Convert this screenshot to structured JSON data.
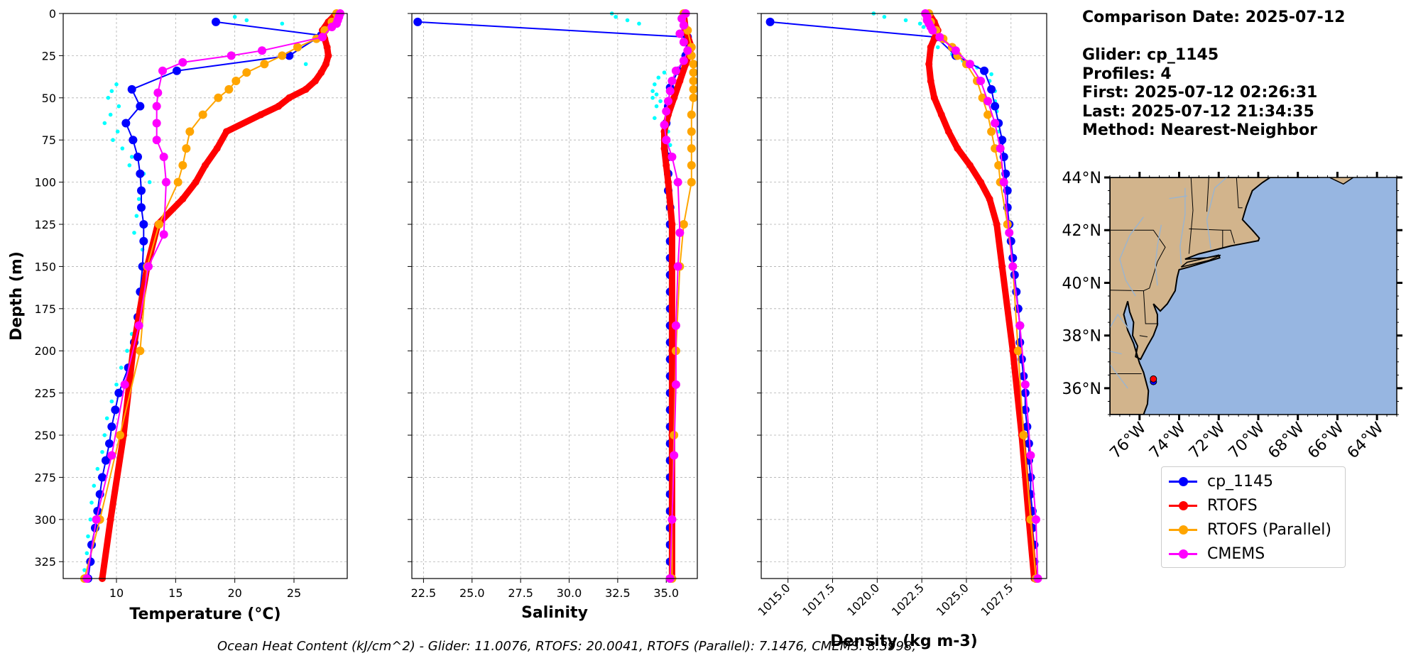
{
  "info": {
    "comparison_date": "Comparison Date: 2025-07-12",
    "glider": "Glider: cp_1145",
    "profiles": "Profiles: 4",
    "first": "First: 2025-07-12 02:26:31",
    "last": "Last: 2025-07-12 21:34:35",
    "method": "Method: Nearest-Neighbor"
  },
  "footer": "Ocean Heat Content (kJ/cm^2) - Glider: 11.0076,  RTOFS: 20.0041,  RTOFS (Parallel): 7.1476,  CMEMS: 8.3998,",
  "legend": [
    {
      "label": "cp_1145",
      "color": "#0000ff"
    },
    {
      "label": "RTOFS",
      "color": "#ff0000"
    },
    {
      "label": "RTOFS (Parallel)",
      "color": "#ffa500"
    },
    {
      "label": "CMEMS",
      "color": "#ff00ff"
    }
  ],
  "chart_data": [
    {
      "type": "line",
      "title": "",
      "xlabel": "Temperature (°C)",
      "ylabel": "Depth (m)",
      "xlim": [
        5.5,
        29.5
      ],
      "ylim": [
        335,
        0
      ],
      "xticks": [
        10,
        15,
        20,
        25
      ],
      "yticks": [
        0,
        25,
        50,
        75,
        100,
        125,
        150,
        175,
        200,
        225,
        250,
        275,
        300,
        325
      ],
      "grid": true,
      "series": [
        {
          "name": "glider-data",
          "style": "cyan-dots",
          "color": "#00ffff",
          "depth": [
            2,
            4,
            6,
            30,
            42,
            46,
            50,
            55,
            60,
            65,
            70,
            75,
            80,
            85,
            90,
            95,
            100,
            110,
            120,
            130,
            140,
            150,
            160,
            170,
            180,
            190,
            200,
            210,
            220,
            230,
            240,
            250,
            260,
            270,
            280,
            290,
            300,
            310,
            320,
            330
          ],
          "values": [
            20,
            21,
            24,
            26,
            10,
            9.6,
            9.3,
            10.2,
            9.5,
            9.0,
            10.1,
            9.7,
            10.5,
            11.3,
            11.1,
            12.3,
            12.8,
            11.9,
            11.7,
            11.5,
            12.2,
            12.0,
            12.2,
            12.1,
            11.8,
            11.3,
            10.9,
            10.4,
            10.0,
            9.6,
            9.2,
            9.0,
            8.8,
            8.4,
            8.1,
            7.9,
            7.8,
            7.6,
            7.5,
            7.3
          ]
        },
        {
          "name": "cp_1145",
          "color": "#0000ff",
          "depth": [
            5,
            13,
            25,
            34,
            45,
            55,
            65,
            75,
            85,
            95,
            105,
            115,
            125,
            135,
            150,
            165,
            180,
            195,
            210,
            225,
            235,
            245,
            255,
            265,
            275,
            285,
            295,
            305,
            315,
            325,
            335
          ],
          "values": [
            18.4,
            27.3,
            24.6,
            15.1,
            11.3,
            12.0,
            10.8,
            11.4,
            11.8,
            12.0,
            12.1,
            12.1,
            12.3,
            12.3,
            12.2,
            12.0,
            11.8,
            11.5,
            11.0,
            10.2,
            9.9,
            9.6,
            9.4,
            9.1,
            8.8,
            8.6,
            8.4,
            8.2,
            7.9,
            7.8,
            7.6
          ]
        },
        {
          "name": "RTOFS",
          "color": "#ff0000",
          "thick": true,
          "depth": [
            0,
            5,
            10,
            15,
            20,
            25,
            30,
            35,
            40,
            45,
            50,
            55,
            60,
            70,
            80,
            90,
            100,
            110,
            125,
            150,
            200,
            250,
            300,
            335
          ],
          "values": [
            28.6,
            27.9,
            27.4,
            27.6,
            27.8,
            27.9,
            27.7,
            27.3,
            26.8,
            26.0,
            24.6,
            23.7,
            22.2,
            19.3,
            18.5,
            17.5,
            16.7,
            15.6,
            13.5,
            12.6,
            11.4,
            10.6,
            9.5,
            8.8
          ]
        },
        {
          "name": "RTOFS (Parallel)",
          "color": "#ffa500",
          "depth": [
            0,
            5,
            10,
            15,
            20,
            25,
            30,
            35,
            40,
            45,
            50,
            60,
            70,
            80,
            90,
            100,
            125,
            150,
            200,
            250,
            300,
            335
          ],
          "values": [
            28.6,
            28.2,
            27.6,
            26.9,
            25.3,
            24.0,
            22.5,
            21.0,
            20.1,
            19.5,
            18.6,
            17.3,
            16.2,
            15.9,
            15.6,
            15.2,
            13.6,
            12.6,
            12.0,
            10.3,
            8.6,
            7.3
          ]
        },
        {
          "name": "CMEMS",
          "color": "#ff00ff",
          "depth": [
            0,
            2,
            4,
            6,
            8,
            14,
            22,
            25,
            29,
            34,
            47,
            55,
            65,
            75,
            85,
            100,
            131,
            150,
            185,
            220,
            262,
            300,
            335
          ],
          "values": [
            28.9,
            28.8,
            28.7,
            28.6,
            28.2,
            27.4,
            22.3,
            19.7,
            15.6,
            13.9,
            13.5,
            13.4,
            13.4,
            13.4,
            14.0,
            14.2,
            14.0,
            12.7,
            11.9,
            10.7,
            9.6,
            8.3,
            7.5
          ]
        }
      ]
    },
    {
      "type": "line",
      "title": "",
      "xlabel": "Salinity",
      "ylabel": "",
      "xlim": [
        21.9,
        36.6
      ],
      "ylim": [
        335,
        0
      ],
      "xticks": [
        22.5,
        25.0,
        27.5,
        30.0,
        32.5,
        35.0
      ],
      "xtick_labels": [
        "22.5",
        "25.0",
        "27.5",
        "30.0",
        "32.5",
        "35.0"
      ],
      "grid": true,
      "series": [
        {
          "name": "glider-data",
          "style": "cyan-dots",
          "color": "#00ffff",
          "depth": [
            0,
            2,
            4,
            6,
            35,
            38,
            42,
            46,
            48,
            50,
            52,
            55,
            58,
            62,
            66,
            70,
            74,
            78
          ],
          "values": [
            32.2,
            32.4,
            33.0,
            33.6,
            34.9,
            34.6,
            34.4,
            34.3,
            34.5,
            34.3,
            34.7,
            34.5,
            34.9,
            34.4,
            34.8,
            35.1,
            34.9,
            35.2
          ]
        },
        {
          "name": "cp_1145",
          "color": "#0000ff",
          "depth": [
            5,
            14,
            25,
            34,
            44,
            55,
            65,
            75,
            85,
            95,
            105,
            115,
            125,
            135,
            145,
            155,
            165,
            175,
            185,
            195,
            205,
            215,
            225,
            235,
            245,
            255,
            265,
            275,
            285,
            295,
            305,
            315,
            325,
            335
          ],
          "values": [
            22.2,
            36.1,
            36.0,
            35.6,
            35.2,
            35.1,
            35.0,
            35.0,
            35.1,
            35.1,
            35.1,
            35.2,
            35.2,
            35.2,
            35.2,
            35.2,
            35.2,
            35.2,
            35.2,
            35.2,
            35.2,
            35.2,
            35.2,
            35.2,
            35.2,
            35.2,
            35.2,
            35.2,
            35.2,
            35.2,
            35.2,
            35.2,
            35.2,
            35.2
          ]
        },
        {
          "name": "RTOFS",
          "color": "#ff0000",
          "thick": true,
          "depth": [
            0,
            10,
            20,
            30,
            40,
            50,
            60,
            70,
            80,
            90,
            100,
            125,
            150,
            200,
            250,
            300,
            335
          ],
          "values": [
            35.9,
            36.0,
            36.3,
            36.0,
            35.7,
            35.4,
            35.1,
            34.9,
            34.9,
            35.0,
            35.1,
            35.3,
            35.3,
            35.3,
            35.3,
            35.3,
            35.3
          ]
        },
        {
          "name": "RTOFS (Parallel)",
          "color": "#ffa500",
          "depth": [
            0,
            10,
            20,
            25,
            30,
            35,
            40,
            45,
            50,
            60,
            70,
            80,
            90,
            100,
            125,
            150,
            200,
            250,
            300,
            335
          ],
          "values": [
            35.9,
            36.1,
            36.3,
            36.3,
            36.4,
            36.4,
            36.4,
            36.4,
            36.4,
            36.3,
            36.3,
            36.3,
            36.3,
            36.3,
            35.9,
            35.7,
            35.5,
            35.4,
            35.3,
            35.3
          ]
        },
        {
          "name": "CMEMS",
          "color": "#ff00ff",
          "depth": [
            0,
            3,
            7,
            12,
            17,
            22,
            28,
            34,
            40,
            46,
            52,
            58,
            66,
            75,
            85,
            100,
            130,
            150,
            185,
            220,
            262,
            300,
            335
          ],
          "values": [
            36.0,
            35.8,
            35.9,
            35.7,
            35.9,
            36.1,
            35.9,
            35.5,
            35.3,
            35.2,
            35.1,
            35.0,
            34.9,
            35.0,
            35.3,
            35.6,
            35.7,
            35.6,
            35.5,
            35.5,
            35.4,
            35.3,
            35.2
          ]
        }
      ]
    },
    {
      "type": "line",
      "title": "",
      "xlabel": "Density (kg m-3)",
      "ylabel": "",
      "xlim": [
        1013.5,
        1029.5
      ],
      "ylim": [
        335,
        0
      ],
      "xticks": [
        1015.0,
        1017.5,
        1020.0,
        1022.5,
        1025.0,
        1027.5
      ],
      "xtick_labels": [
        "1015.0",
        "1017.5",
        "1020.0",
        "1022.5",
        "1025.0",
        "1027.5"
      ],
      "grid": true,
      "series": [
        {
          "name": "glider-data",
          "style": "cyan-dots",
          "color": "#00ffff",
          "depth": [
            0,
            2,
            4,
            6,
            8,
            20,
            24,
            28,
            32,
            36,
            40,
            46,
            52,
            58,
            64,
            70
          ],
          "values": [
            1019.8,
            1020.4,
            1021.6,
            1022.4,
            1022.6,
            1023.4,
            1024.2,
            1024.8,
            1025.6,
            1026.4,
            1026.3,
            1026.6,
            1026.6,
            1026.7,
            1026.7,
            1026.8
          ]
        },
        {
          "name": "cp_1145",
          "color": "#0000ff",
          "depth": [
            5,
            14,
            25,
            34,
            45,
            55,
            65,
            75,
            85,
            95,
            105,
            115,
            125,
            135,
            145,
            155,
            165,
            175,
            185,
            195,
            205,
            215,
            225,
            235,
            245,
            255,
            265,
            275,
            285,
            295,
            305,
            315,
            325,
            335
          ],
          "values": [
            1014.0,
            1023.3,
            1024.4,
            1026.0,
            1026.4,
            1026.6,
            1026.8,
            1027.0,
            1027.1,
            1027.2,
            1027.3,
            1027.3,
            1027.4,
            1027.5,
            1027.6,
            1027.7,
            1027.8,
            1027.9,
            1028.0,
            1028.0,
            1028.1,
            1028.2,
            1028.3,
            1028.3,
            1028.4,
            1028.5,
            1028.5,
            1028.6,
            1028.6,
            1028.7,
            1028.7,
            1028.8,
            1028.8,
            1028.9
          ]
        },
        {
          "name": "RTOFS",
          "color": "#ff0000",
          "thick": true,
          "depth": [
            0,
            5,
            10,
            15,
            20,
            30,
            40,
            50,
            60,
            70,
            80,
            90,
            100,
            110,
            125,
            150,
            200,
            250,
            300,
            335
          ],
          "values": [
            1022.9,
            1023.2,
            1023.4,
            1023.2,
            1023.0,
            1022.9,
            1023.0,
            1023.2,
            1023.6,
            1024.0,
            1024.5,
            1025.2,
            1025.8,
            1026.3,
            1026.7,
            1027.0,
            1027.6,
            1028.1,
            1028.5,
            1028.8
          ]
        },
        {
          "name": "RTOFS (Parallel)",
          "color": "#ffa500",
          "depth": [
            0,
            5,
            10,
            15,
            20,
            25,
            30,
            40,
            50,
            60,
            70,
            80,
            90,
            100,
            125,
            150,
            200,
            250,
            300,
            335
          ],
          "values": [
            1022.9,
            1023.0,
            1023.3,
            1023.7,
            1024.2,
            1024.5,
            1025.0,
            1025.6,
            1025.9,
            1026.2,
            1026.4,
            1026.6,
            1026.8,
            1026.9,
            1027.3,
            1027.6,
            1027.9,
            1028.2,
            1028.6,
            1028.9
          ]
        },
        {
          "name": "CMEMS",
          "color": "#ff00ff",
          "depth": [
            0,
            2,
            4,
            6,
            8,
            10,
            14,
            22,
            30,
            40,
            52,
            65,
            80,
            100,
            130,
            150,
            185,
            220,
            262,
            300,
            335
          ],
          "values": [
            1022.7,
            1022.8,
            1022.8,
            1022.9,
            1023.0,
            1023.1,
            1023.5,
            1024.4,
            1025.2,
            1025.8,
            1026.2,
            1026.6,
            1026.9,
            1027.1,
            1027.4,
            1027.6,
            1028.0,
            1028.3,
            1028.6,
            1028.9,
            1029.0
          ]
        }
      ]
    },
    {
      "type": "map",
      "lat_ticks": [
        "44°N",
        "42°N",
        "40°N",
        "38°N",
        "36°N"
      ],
      "lat_values": [
        44,
        42,
        40,
        38,
        36
      ],
      "lon_ticks": [
        "76°W",
        "74°W",
        "72°W",
        "70°W",
        "68°W",
        "66°W",
        "64°W"
      ],
      "lon_values": [
        -76,
        -74,
        -72,
        -70,
        -68,
        -66,
        -64
      ],
      "lon_range": [
        -77.5,
        -63.0
      ],
      "lat_range": [
        35.0,
        44.0
      ],
      "markers": [
        {
          "name": "glider-position",
          "lon": -75.3,
          "lat": 36.25,
          "color": "#0000ff"
        },
        {
          "name": "model-position",
          "lon": -75.3,
          "lat": 36.35,
          "color": "#ff0000"
        }
      ]
    }
  ]
}
